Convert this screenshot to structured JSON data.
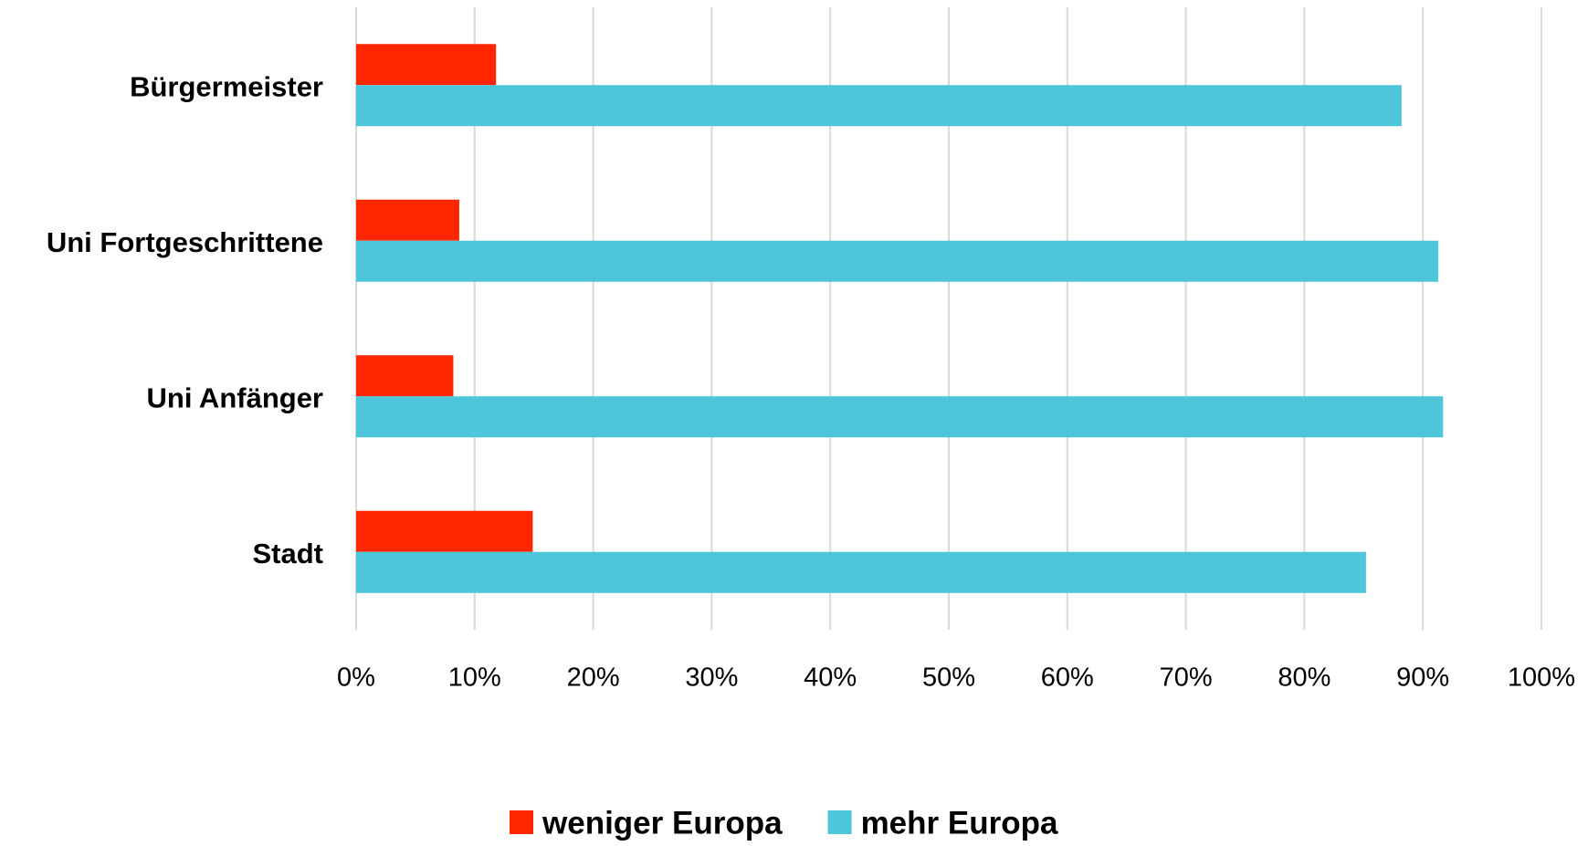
{
  "chart_data": {
    "type": "bar",
    "orientation": "horizontal",
    "categories": [
      "Bürgermeister",
      "Uni Fortgeschrittene",
      "Uni Anfänger",
      "Stadt"
    ],
    "series": [
      {
        "name": "weniger Europa",
        "color": "#ff2600",
        "values": [
          11.8,
          8.7,
          8.2,
          14.9
        ]
      },
      {
        "name": "mehr Europa",
        "color": "#4dc6dc",
        "values": [
          88.2,
          91.3,
          91.7,
          85.2
        ]
      }
    ],
    "xlim": [
      0,
      100
    ],
    "xticks": [
      {
        "value": 0,
        "label": "0%"
      },
      {
        "value": 10,
        "label": "10%"
      },
      {
        "value": 20,
        "label": "20%"
      },
      {
        "value": 30,
        "label": "30%"
      },
      {
        "value": 40,
        "label": "40%"
      },
      {
        "value": 50,
        "label": "50%"
      },
      {
        "value": 60,
        "label": "60%"
      },
      {
        "value": 70,
        "label": "70%"
      },
      {
        "value": 80,
        "label": "80%"
      },
      {
        "value": 90,
        "label": "90%"
      },
      {
        "value": 100,
        "label": "100%"
      }
    ],
    "grid": true,
    "legend": "bottom"
  }
}
